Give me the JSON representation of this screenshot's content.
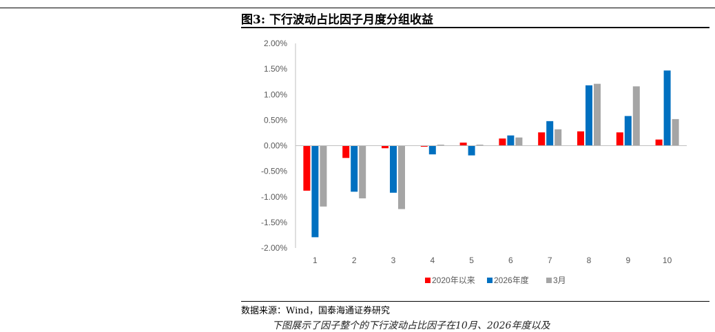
{
  "figure": {
    "title": "图3: 下行波动占比因子月度分组收益",
    "source": "数据来源：Wind，国泰海通证券研究",
    "trailing_text": "下图展示了因子整个的下行波动占比因子在10月、2026年度以及"
  },
  "chart_data": {
    "type": "bar",
    "title": "",
    "xlabel": "",
    "ylabel": "",
    "categories": [
      "1",
      "2",
      "3",
      "4",
      "5",
      "6",
      "7",
      "8",
      "9",
      "10"
    ],
    "ylim": [
      -0.02,
      0.02
    ],
    "yticks": [
      "2.00%",
      "1.50%",
      "1.00%",
      "0.50%",
      "0.00%",
      "-0.50%",
      "-1.00%",
      "-1.50%",
      "-2.00%"
    ],
    "grid": false,
    "legend_position": "bottom",
    "series": [
      {
        "name": "2020年以来",
        "color": "#ff0000",
        "values": [
          -0.0088,
          -0.0024,
          -0.0005,
          -0.0002,
          0.0006,
          0.0014,
          0.0026,
          0.0028,
          0.0026,
          0.0012
        ]
      },
      {
        "name": "2026年度",
        "color": "#0070c0",
        "values": [
          -0.0179,
          -0.009,
          -0.0092,
          -0.0017,
          -0.0019,
          0.002,
          0.0048,
          0.0118,
          0.0058,
          0.0147
        ]
      },
      {
        "name": "3月",
        "color": "#a5a5a5",
        "values": [
          -0.0119,
          -0.0103,
          -0.0124,
          0.0002,
          0.0002,
          0.0016,
          0.0032,
          0.0121,
          0.0116,
          0.0052
        ]
      }
    ]
  }
}
